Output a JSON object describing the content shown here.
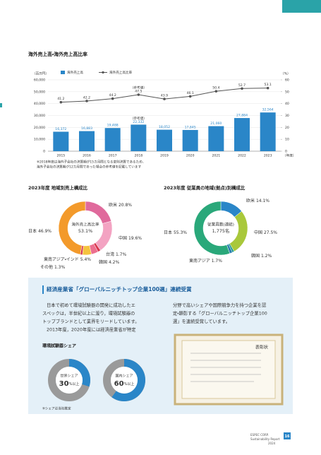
{
  "header": {
    "section_title": "海外売上高・海外売上高比率"
  },
  "chart_data": [
    {
      "type": "bar",
      "categories": [
        "2015",
        "2016",
        "2017",
        "2018",
        "2019",
        "2020",
        "2021",
        "2022",
        "2023"
      ],
      "x_unit": "（年度）",
      "y_label": "（百万円）",
      "y2_label": "（%）",
      "series": [
        {
          "name": "海外売上高",
          "color": "#2a86c8",
          "values": [
            16372,
            16883,
            19488,
            22332,
            18052,
            17845,
            21060,
            27884,
            32564
          ],
          "value_labels": [
            "16,372",
            "16,883",
            "19,488",
            "22,332",
            "18,052",
            "17,845",
            "21,060",
            "27,884",
            "32,564"
          ]
        },
        {
          "name": "海外売上高比率",
          "type": "line",
          "axis": "y2",
          "color": "#555555",
          "values": [
            41.2,
            42.2,
            44.2,
            47.5,
            43.9,
            46.1,
            50.4,
            52.7,
            53.1
          ]
        }
      ],
      "ylim": [
        0,
        60000
      ],
      "yticks": [
        0,
        {
          "value": 10000,
          "label": "10,000"
        },
        {
          "value": 20000,
          "label": "20,000"
        },
        {
          "value": 30000,
          "label": "30,000"
        },
        {
          "value": 40000,
          "label": "40,000"
        },
        {
          "value": 50000,
          "label": "50,000"
        },
        {
          "value": 60000,
          "label": "60,000"
        }
      ],
      "y2lim": [
        0,
        60
      ],
      "y2ticks": [
        0,
        10,
        20,
        30,
        40,
        50,
        60
      ],
      "annotations": [
        "（参考値）",
        "（参考値）"
      ],
      "note": [
        "※2018年度は海外子会社の決算期が15カ月間となる変則決算であるため、",
        "海外子会社の決算期が12カ月間であった場合の参考値を記載しています"
      ]
    },
    {
      "type": "pie",
      "title": "2023年度 地域別売上構成比",
      "categories": [
        "欧米",
        "中国",
        "台湾",
        "韓国",
        "東南アジア・インド",
        "その他",
        "日本"
      ],
      "values": [
        20.8,
        19.6,
        1.7,
        4.2,
        5.4,
        1.3,
        46.9
      ],
      "value_labels": [
        "20.8%",
        "19.6%",
        "1.7%",
        "4.2%",
        "5.4%",
        "1.3%",
        "46.9%"
      ],
      "colors": [
        "#e06a9c",
        "#f3a3c2",
        "#d9364e",
        "#ec6f8f",
        "#f5c33e",
        "#d8334a",
        "#f39a2b"
      ],
      "center_label": "海外売上高比率",
      "center_value": 53.1,
      "center_value_label": "53.1%"
    },
    {
      "type": "pie",
      "title": "2023年度 従業員の地域(拠点)別構成比",
      "categories": [
        "欧米",
        "中国",
        "韓国",
        "東南アジア",
        "日本"
      ],
      "values": [
        14.1,
        27.5,
        1.2,
        1.7,
        55.3
      ],
      "value_labels": [
        "14.1%",
        "27.5%",
        "1.2%",
        "1.7%",
        "55.3%"
      ],
      "colors": [
        "#2a86c8",
        "#a9c83b",
        "#1f9a8f",
        "#2a7fb0",
        "#2aa87a"
      ],
      "center_label": "従業員数(連結)",
      "center_value": 1775,
      "center_value_label": "1,775名"
    },
    {
      "type": "gauge",
      "label": "世界シェア",
      "value": 30,
      "suffix": "%以上",
      "color": "#2a86c8"
    },
    {
      "type": "gauge",
      "label": "国内シェア",
      "value": 60,
      "suffix": "%以上",
      "color": "#2a86c8"
    }
  ],
  "award": {
    "title": "経済産業省「グローバルニッチトップ企業100選」連続受賞",
    "left_lines": [
      "日本で初めて環境試験器の開発に成功したエ",
      "スペックは，半世紀以上に渡り，環境試験器の",
      "トップブランドとして業界をリードしています。",
      "2013年度，2020年度には経済産業省が特定"
    ],
    "right_lines": [
      "分野で高いシェアや国際競争力を持つ企業を認",
      "定・顕彰する「グローバルニッチトップ企業100",
      "選」を連続受賞しています。"
    ],
    "share_title": "環境試験器シェア",
    "share_note": "※シェアは当社推定",
    "certificate": "表彰状"
  },
  "footer": {
    "company": "ESPEC CORP.",
    "report": "Sustainability Report",
    "year": "2024",
    "page": "16"
  }
}
